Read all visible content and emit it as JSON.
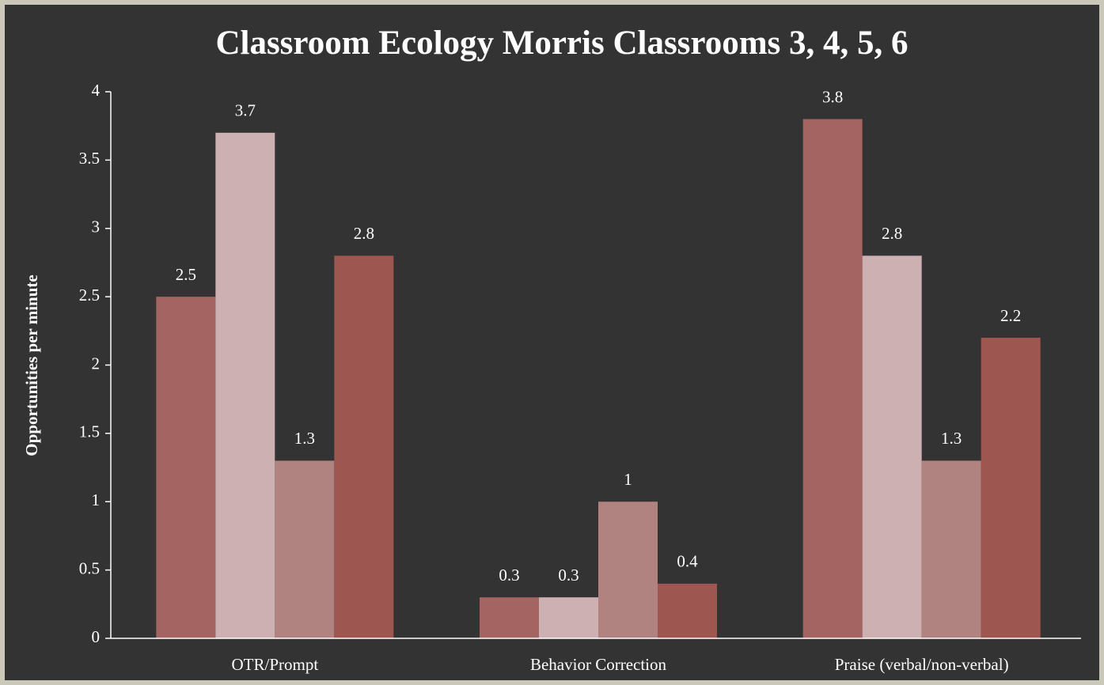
{
  "chart_data": {
    "type": "bar",
    "title": "Classroom Ecology Morris Classrooms 3, 4, 5, 6",
    "ylabel": "Opportunities per minute",
    "categories": [
      "OTR/Prompt",
      "Behavior Correction",
      "Praise (verbal/non-verbal)"
    ],
    "series": [
      {
        "color": "#a46461",
        "values": [
          2.5,
          0.3,
          3.8
        ]
      },
      {
        "color": "#cdb0b1",
        "values": [
          3.7,
          0.3,
          2.8
        ]
      },
      {
        "color": "#b08380",
        "values": [
          1.3,
          1,
          1.3
        ]
      },
      {
        "color": "#9e5650",
        "values": [
          2.8,
          0.4,
          2.2
        ]
      }
    ],
    "ylim": [
      0,
      4
    ],
    "yticks": [
      0,
      0.5,
      1,
      1.5,
      2,
      2.5,
      3,
      3.5,
      4
    ],
    "grid": false
  }
}
